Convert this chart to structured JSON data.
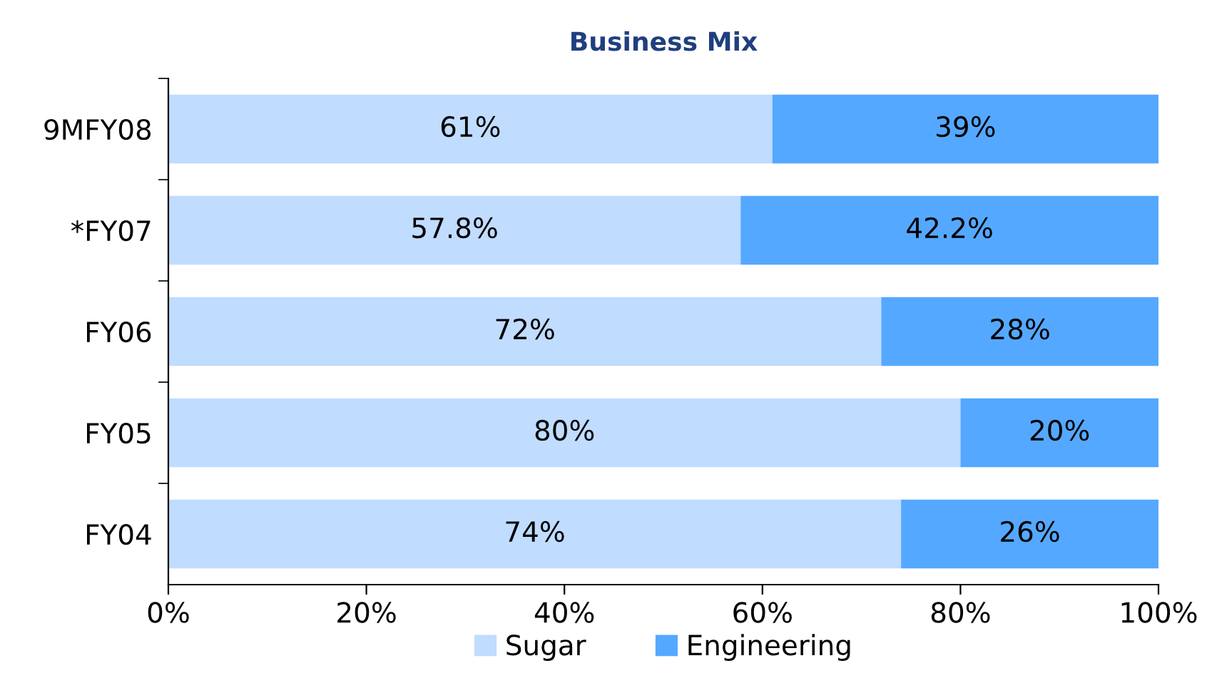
{
  "chart_data": {
    "type": "bar",
    "title": "Business Mix",
    "orientation": "horizontal",
    "stacked": true,
    "categories": [
      "9MFY08",
      "*FY07",
      "FY06",
      "FY05",
      "FY04"
    ],
    "series": [
      {
        "name": "Sugar",
        "color": "#c0dcff",
        "values": [
          61,
          57.8,
          72,
          80,
          74
        ],
        "value_labels": [
          "61%",
          "57.8%",
          "72%",
          "80%",
          "74%"
        ]
      },
      {
        "name": "Engineering",
        "color": "#55a8ff",
        "values": [
          39,
          42.2,
          28,
          20,
          26
        ],
        "value_labels": [
          "39%",
          "42.2%",
          "28%",
          "20%",
          "26%"
        ]
      }
    ],
    "xlim": [
      0,
      100
    ],
    "xticks": [
      {
        "value": 0,
        "label": "0%"
      },
      {
        "value": 20,
        "label": "20%"
      },
      {
        "value": 40,
        "label": "40%"
      },
      {
        "value": 60,
        "label": "60%"
      },
      {
        "value": 80,
        "label": "80%"
      },
      {
        "value": 100,
        "label": "100%"
      }
    ],
    "grid": false,
    "legend": "bottom"
  }
}
